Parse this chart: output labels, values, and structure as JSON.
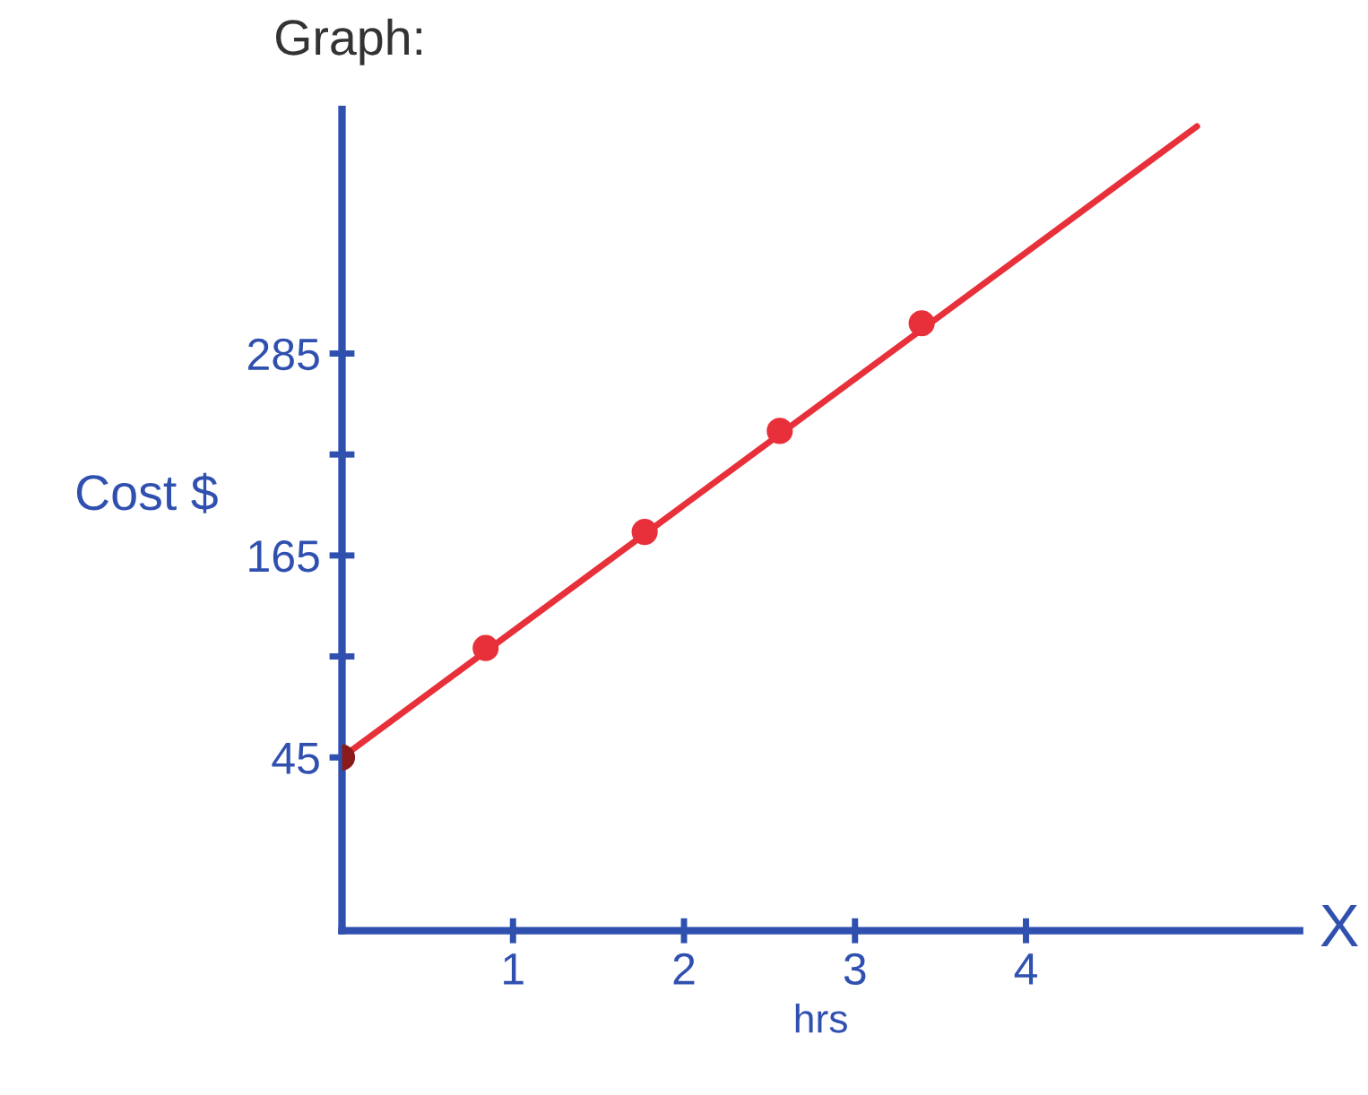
{
  "chart_data": {
    "type": "line",
    "title": "Graph:",
    "xlabel": "hrs",
    "ylabel": "Cost $",
    "annotations": [
      "X"
    ],
    "xlim": [
      0,
      5.6
    ],
    "ylim": [
      -58,
      430
    ],
    "xticks": [
      1,
      2,
      3,
      4
    ],
    "yticks": [
      45,
      {
        "value": 105,
        "label": null
      },
      165,
      {
        "value": 225,
        "label": null
      },
      285
    ],
    "grid": false,
    "legend": false,
    "line_style": "solid",
    "series": [
      {
        "marker": "none",
        "color": "#e8303a",
        "x": [
          0,
          5.0
        ],
        "values": [
          45,
          420
        ]
      },
      {
        "type": "scatter",
        "marker": "circle",
        "colors": [
          "#8b1a1a",
          "#e8303a",
          "#e8303a",
          "#e8303a",
          "#e8303a"
        ],
        "x": [
          0,
          0.84,
          1.77,
          2.56,
          3.39
        ],
        "values": [
          45,
          110,
          179,
          239,
          303
        ]
      }
    ]
  }
}
